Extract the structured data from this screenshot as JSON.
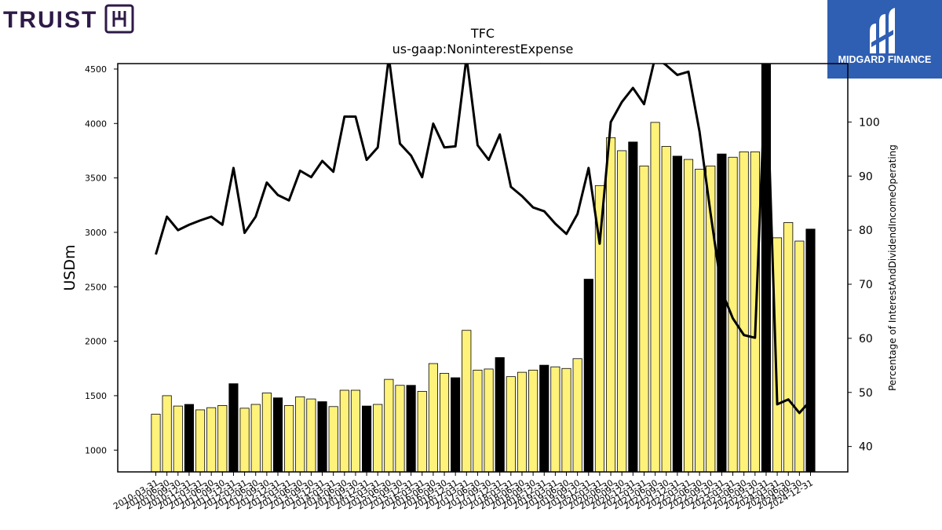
{
  "logos": {
    "left": {
      "text": "TRUIST",
      "color": "#2e1a47"
    },
    "right": {
      "text": "MIDGARD FINANCE",
      "bg_color": "#2f5fb3"
    }
  },
  "chart_data": {
    "type": "bar",
    "title": "TFC",
    "subtitle": "us-gaap:NoninterestExpense",
    "ylabel": "USDm",
    "y2label": "Percentage of InterestAndDividendIncomeOperating",
    "ylim": [
      800,
      4550
    ],
    "y2lim": [
      35.3,
      110.8
    ],
    "yticks": [
      1000,
      1500,
      2000,
      2500,
      3000,
      3500,
      4000,
      4500
    ],
    "y2ticks": [
      40,
      50,
      60,
      70,
      80,
      90,
      100
    ],
    "categories": [
      "2010-03-31",
      "2010-06-30",
      "2010-09-30",
      "2010-12-31",
      "2011-03-31",
      "2011-06-30",
      "2011-09-30",
      "2011-12-31",
      "2012-03-31",
      "2012-06-30",
      "2012-09-30",
      "2012-12-31",
      "2013-03-31",
      "2013-06-30",
      "2013-09-30",
      "2013-12-31",
      "2014-03-31",
      "2014-06-30",
      "2014-09-30",
      "2014-12-31",
      "2015-03-31",
      "2015-06-30",
      "2015-09-30",
      "2015-12-31",
      "2016-03-31",
      "2016-06-30",
      "2016-09-30",
      "2016-12-31",
      "2017-03-31",
      "2017-06-30",
      "2017-09-30",
      "2017-12-31",
      "2018-03-31",
      "2018-06-30",
      "2018-09-30",
      "2018-12-31",
      "2019-03-31",
      "2019-06-30",
      "2019-09-30",
      "2019-12-31",
      "2020-03-31",
      "2020-06-30",
      "2020-09-30",
      "2020-12-31",
      "2021-03-31",
      "2021-06-30",
      "2021-09-30",
      "2021-12-31",
      "2022-03-31",
      "2022-06-30",
      "2022-09-30",
      "2022-12-31",
      "2023-03-31",
      "2023-06-30",
      "2023-09-30",
      "2023-12-31",
      "2024-03-31",
      "2024-06-30",
      "2024-09-30",
      "2024-12-31"
    ],
    "series": [
      {
        "kind": "bar",
        "values": [
          1330,
          1500,
          1405,
          1420,
          1370,
          1390,
          1410,
          1610,
          1385,
          1420,
          1525,
          1480,
          1410,
          1490,
          1470,
          1445,
          1400,
          1550,
          1550,
          1405,
          1420,
          1650,
          1595,
          1595,
          1540,
          1795,
          1705,
          1665,
          2100,
          1735,
          1745,
          1850,
          1675,
          1715,
          1735,
          1780,
          1765,
          1750,
          1840,
          2570,
          3430,
          3870,
          3750,
          3830,
          3610,
          4010,
          3790,
          3700,
          3670,
          3580,
          3610,
          3720,
          3690,
          3740,
          3740,
          4600,
          2950,
          3090,
          2920,
          3030
        ],
        "fill_colors": [
          "y",
          "y",
          "y",
          "k",
          "y",
          "y",
          "y",
          "k",
          "y",
          "y",
          "y",
          "k",
          "y",
          "y",
          "y",
          "k",
          "y",
          "y",
          "y",
          "k",
          "y",
          "y",
          "y",
          "k",
          "y",
          "y",
          "y",
          "k",
          "y",
          "y",
          "y",
          "k",
          "y",
          "y",
          "y",
          "k",
          "y",
          "y",
          "y",
          "k",
          "y",
          "y",
          "y",
          "k",
          "y",
          "y",
          "y",
          "k",
          "y",
          "y",
          "y",
          "k",
          "y",
          "y",
          "y",
          "k",
          "y",
          "y",
          "y",
          "k"
        ],
        "highlight_color": "#fff27a",
        "accent_color": "#000000"
      },
      {
        "kind": "line",
        "axis": "right",
        "color": "#000000",
        "values": [
          75.5,
          82.5,
          80,
          81,
          81.8,
          82.5,
          81,
          91.5,
          79.5,
          82.5,
          88.8,
          86.5,
          85.5,
          91,
          89.8,
          92.8,
          90.8,
          101,
          101,
          93,
          95.3,
          112,
          96,
          93.8,
          89.8,
          99.7,
          95.3,
          95.5,
          112,
          95.7,
          93,
          97.7,
          88,
          86.3,
          84.2,
          83.5,
          81.2,
          79.3,
          83,
          91.5,
          77.5,
          100,
          103.7,
          106.3,
          103.3,
          112,
          110.5,
          108.7,
          109.3,
          98.2,
          83,
          68.7,
          63.7,
          60.6,
          60.1,
          112,
          47.8,
          48.7,
          46.2,
          48.5
        ]
      }
    ]
  }
}
